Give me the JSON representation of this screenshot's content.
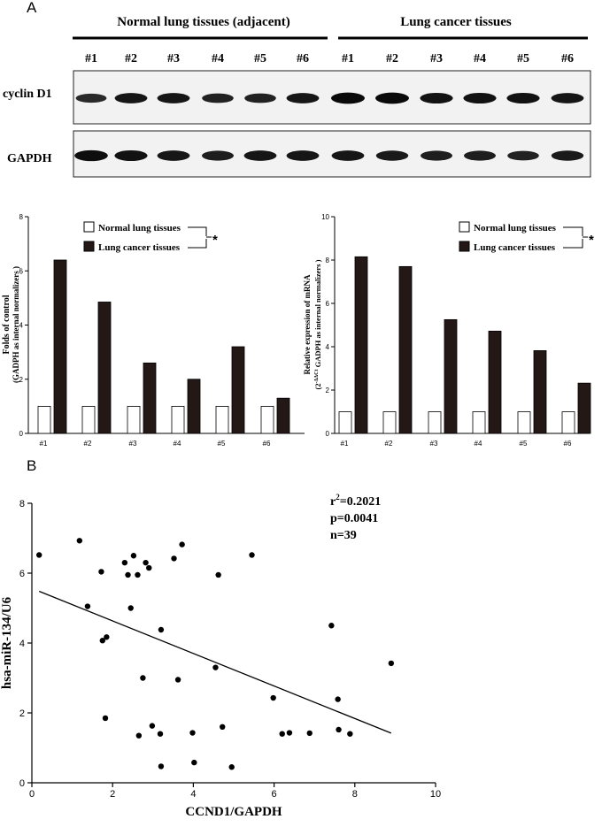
{
  "panel_a": {
    "label": "A",
    "group_normal": "Normal lung tissues (adjacent)",
    "group_cancer": "Lung cancer tissues",
    "lanes": [
      "#1",
      "#2",
      "#3",
      "#4",
      "#5",
      "#6",
      "#1",
      "#2",
      "#3",
      "#4",
      "#5",
      "#6"
    ],
    "blot_rows": [
      "cyclin D1",
      "GAPDH"
    ],
    "blot_intensity": {
      "cyclin D1": [
        0.6,
        0.85,
        0.85,
        0.7,
        0.7,
        0.85,
        1.0,
        1.0,
        0.9,
        0.9,
        0.9,
        0.85
      ],
      "GAPDH": [
        0.95,
        0.9,
        0.85,
        0.75,
        0.85,
        0.85,
        0.85,
        0.8,
        0.75,
        0.75,
        0.7,
        0.8
      ]
    }
  },
  "panel_b": {
    "label": "B",
    "stats": {
      "r2_prefix": "r",
      "r2_sup": "2",
      "r2_value": "=0.2021",
      "p": "p=0.0041",
      "n": "n=39"
    }
  },
  "colors": {
    "normal_bar": "#ffffff",
    "cancer_bar": "#231815",
    "axis": "#000000"
  },
  "chart_data": [
    {
      "type": "bar",
      "id": "protein-bar-chart",
      "categories": [
        "#1",
        "#2",
        "#3",
        "#4",
        "#5",
        "#6"
      ],
      "series": [
        {
          "name": "Normal lung tissues",
          "values": [
            1,
            1,
            1,
            1,
            1,
            1
          ]
        },
        {
          "name": "Lung cancer tissues",
          "values": [
            6.4,
            4.85,
            2.6,
            2.0,
            3.2,
            1.3
          ]
        }
      ],
      "ylabel_line1": "Folds of control",
      "ylabel_line2": "(GADPH as internal normalizers )",
      "ylim": [
        0,
        8
      ],
      "yticks": [
        0,
        2,
        4,
        6,
        8
      ],
      "significance": "*",
      "legend": "top-center"
    },
    {
      "type": "bar",
      "id": "mrna-bar-chart",
      "categories": [
        "#1",
        "#2",
        "#3",
        "#4",
        "#5",
        "#6"
      ],
      "series": [
        {
          "name": "Normal lung tissues",
          "values": [
            1,
            1,
            1,
            1,
            1,
            1
          ]
        },
        {
          "name": "Lung cancer tissues",
          "values": [
            8.15,
            7.7,
            5.25,
            4.72,
            3.82,
            2.32
          ]
        }
      ],
      "ylabel_line1": "Relative expression of mRNA",
      "ylabel_line2_pre": "(2",
      "ylabel_line2_sup": "-ΔΔCt",
      "ylabel_line2_post": " GADPH as internal normalizers )",
      "ylim": [
        0,
        10
      ],
      "yticks": [
        0,
        2,
        4,
        6,
        8,
        10
      ],
      "significance": "*",
      "legend": "top-center"
    },
    {
      "type": "scatter",
      "id": "correlation-scatter",
      "xlabel": "CCND1/GAPDH",
      "ylabel": "hsa-miR-134/U6",
      "xlim": [
        0,
        10
      ],
      "ylim": [
        0,
        8
      ],
      "xticks": [
        0,
        2,
        4,
        6,
        8,
        10
      ],
      "yticks": [
        0,
        2,
        4,
        6,
        8
      ],
      "points": [
        [
          0.18,
          6.52
        ],
        [
          1.18,
          6.93
        ],
        [
          1.38,
          5.05
        ],
        [
          1.72,
          6.04
        ],
        [
          1.75,
          4.07
        ],
        [
          1.85,
          4.17
        ],
        [
          1.82,
          1.85
        ],
        [
          2.3,
          6.3
        ],
        [
          2.38,
          5.95
        ],
        [
          2.45,
          5.0
        ],
        [
          2.52,
          6.5
        ],
        [
          2.62,
          5.95
        ],
        [
          2.65,
          1.35
        ],
        [
          2.75,
          3.0
        ],
        [
          2.82,
          6.3
        ],
        [
          2.9,
          6.15
        ],
        [
          2.98,
          1.63
        ],
        [
          3.18,
          1.4
        ],
        [
          3.2,
          4.38
        ],
        [
          3.2,
          0.47
        ],
        [
          3.52,
          6.42
        ],
        [
          3.62,
          2.95
        ],
        [
          3.72,
          6.82
        ],
        [
          3.98,
          1.43
        ],
        [
          4.02,
          0.58
        ],
        [
          4.55,
          3.3
        ],
        [
          4.62,
          5.95
        ],
        [
          4.72,
          1.6
        ],
        [
          4.95,
          0.45
        ],
        [
          5.45,
          6.52
        ],
        [
          5.98,
          2.43
        ],
        [
          6.2,
          1.4
        ],
        [
          6.38,
          1.43
        ],
        [
          6.88,
          1.42
        ],
        [
          7.42,
          4.5
        ],
        [
          7.58,
          2.39
        ],
        [
          7.6,
          1.52
        ],
        [
          7.88,
          1.4
        ],
        [
          8.9,
          3.42
        ]
      ],
      "fit_line": {
        "x": [
          0.18,
          8.9
        ],
        "y": [
          5.48,
          1.42
        ]
      }
    }
  ]
}
